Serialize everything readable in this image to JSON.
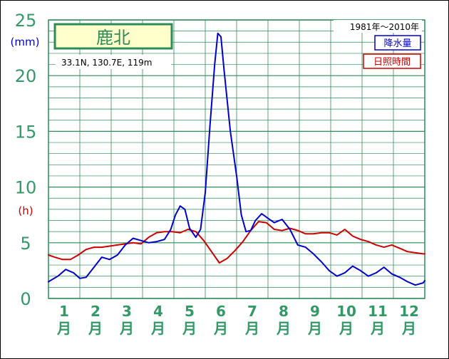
{
  "station": {
    "name": "鹿北",
    "location": "33.1N,  130.7E,  119m",
    "period": "1981年〜2010年"
  },
  "legend": {
    "precip": "降水量",
    "sunshine": "日照時間"
  },
  "axis": {
    "unit_precip": "(mm)",
    "unit_sun": "(h)",
    "y_ticks": [
      "0",
      "5",
      "10",
      "15",
      "20",
      "25"
    ],
    "month_numbers": [
      "1",
      "2",
      "3",
      "4",
      "5",
      "6",
      "7",
      "8",
      "9",
      "10",
      "11",
      "12"
    ],
    "month_suffix": "月"
  },
  "colors": {
    "frame": "#2e8b57",
    "grid": "#2e8b57",
    "tick_text": "#339966",
    "precip": "#0000cc",
    "sunshine": "#cc0000",
    "title_box_fill": "#ffffcc"
  },
  "chart_data": {
    "type": "line",
    "x_unit": "half-month (1 = 1月 start, 13 = 12月 end)",
    "xlim": [
      1,
      13
    ],
    "ylim": [
      0,
      25
    ],
    "grid": true,
    "legend_position": "top-right",
    "series": [
      {
        "name": "降水量",
        "unit": "mm",
        "color": "#0000cc",
        "x": [
          1.0,
          1.3,
          1.55,
          1.8,
          2.0,
          2.2,
          2.45,
          2.7,
          2.95,
          3.2,
          3.45,
          3.7,
          3.95,
          4.2,
          4.45,
          4.7,
          4.9,
          5.05,
          5.2,
          5.35,
          5.5,
          5.7,
          5.85,
          6.0,
          6.15,
          6.3,
          6.4,
          6.5,
          6.6,
          6.8,
          7.0,
          7.15,
          7.3,
          7.45,
          7.6,
          7.8,
          8.0,
          8.2,
          8.45,
          8.7,
          8.95,
          9.2,
          9.45,
          9.7,
          9.95,
          10.2,
          10.45,
          10.7,
          10.95,
          11.2,
          11.45,
          11.7,
          11.95,
          12.2,
          12.45,
          12.7,
          12.95,
          13.0
        ],
        "y": [
          1.5,
          2.0,
          2.6,
          2.3,
          1.8,
          1.9,
          2.8,
          3.7,
          3.5,
          3.9,
          4.8,
          5.4,
          5.2,
          5.0,
          5.1,
          5.3,
          6.2,
          7.5,
          8.3,
          8.0,
          6.3,
          5.5,
          6.2,
          9.5,
          15.5,
          21.0,
          23.8,
          23.5,
          20.5,
          15.0,
          11.0,
          7.5,
          6.0,
          6.1,
          7.0,
          7.6,
          7.2,
          6.8,
          7.1,
          6.2,
          4.8,
          4.6,
          4.0,
          3.3,
          2.5,
          2.0,
          2.3,
          2.9,
          2.5,
          2.0,
          2.3,
          2.8,
          2.2,
          1.9,
          1.5,
          1.2,
          1.4,
          1.6
        ]
      },
      {
        "name": "日照時間",
        "unit": "h",
        "color": "#cc0000",
        "x": [
          1.0,
          1.2,
          1.45,
          1.7,
          1.95,
          2.2,
          2.45,
          2.7,
          2.95,
          3.2,
          3.45,
          3.7,
          3.95,
          4.2,
          4.45,
          4.7,
          4.95,
          5.2,
          5.45,
          5.7,
          5.95,
          6.2,
          6.45,
          6.7,
          6.95,
          7.2,
          7.45,
          7.7,
          7.95,
          8.2,
          8.45,
          8.7,
          8.95,
          9.2,
          9.45,
          9.7,
          9.95,
          10.2,
          10.45,
          10.7,
          10.95,
          11.2,
          11.45,
          11.7,
          11.95,
          12.2,
          12.45,
          12.7,
          12.95,
          13.0
        ],
        "y": [
          3.9,
          3.7,
          3.5,
          3.5,
          3.9,
          4.4,
          4.6,
          4.6,
          4.7,
          4.8,
          4.9,
          5.0,
          4.9,
          5.5,
          5.9,
          6.0,
          6.0,
          5.9,
          6.2,
          6.0,
          5.2,
          4.2,
          3.2,
          3.6,
          4.3,
          5.1,
          6.1,
          6.9,
          6.8,
          6.2,
          6.1,
          6.3,
          6.1,
          5.8,
          5.8,
          5.9,
          5.9,
          5.7,
          6.2,
          5.6,
          5.3,
          5.1,
          4.8,
          4.6,
          4.8,
          4.5,
          4.2,
          4.1,
          4.0,
          4.0
        ]
      }
    ]
  }
}
